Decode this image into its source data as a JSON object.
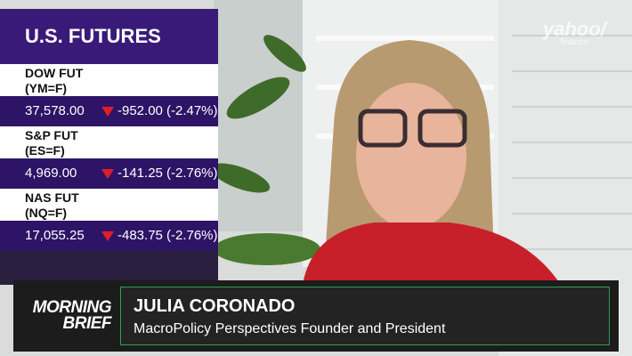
{
  "logo": {
    "brand": "yahoo/",
    "sub": "finance"
  },
  "futures": {
    "title": "U.S. FUTURES",
    "rows": [
      {
        "name": "DOW FUT",
        "ticker": "(YM=F)",
        "price": "37,578.00",
        "change": "-952.00",
        "percent": "(-2.47%)"
      },
      {
        "name": "S&P FUT",
        "ticker": "(ES=F)",
        "price": "4,969.00",
        "change": "-141.25",
        "percent": "(-2.76%)"
      },
      {
        "name": "NAS FUT",
        "ticker": "(NQ=F)",
        "price": "17,055.25",
        "change": "-483.75",
        "percent": "(-2.76%)"
      }
    ]
  },
  "lower_third": {
    "show": [
      "MORNING",
      "BRIEF"
    ],
    "name": "JULIA CORONADO",
    "title": "MacroPolicy Perspectives Founder and President"
  }
}
